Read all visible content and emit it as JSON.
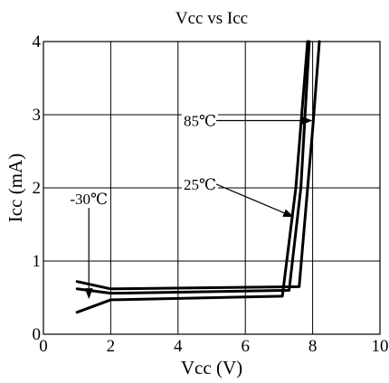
{
  "chart_data": {
    "type": "line",
    "title": "Vcc vs Icc",
    "xlabel": "Vcc (V)",
    "ylabel": "Icc (mA)",
    "xlim": [
      0,
      10
    ],
    "ylim": [
      0,
      4
    ],
    "xticks": [
      0,
      2,
      4,
      6,
      8,
      10
    ],
    "yticks": [
      0,
      1,
      2,
      3,
      4
    ],
    "grid": true,
    "series": [
      {
        "name": "-30℃",
        "x": [
          1.0,
          2.0,
          7.1,
          7.5,
          7.85
        ],
        "y": [
          0.3,
          0.47,
          0.52,
          2.0,
          4.0
        ]
      },
      {
        "name": "25℃",
        "x": [
          1.0,
          2.0,
          7.3,
          7.65,
          7.9
        ],
        "y": [
          0.62,
          0.56,
          0.6,
          2.0,
          4.0
        ]
      },
      {
        "name": "85℃",
        "x": [
          1.0,
          2.0,
          7.6,
          8.0,
          8.2
        ],
        "y": [
          0.72,
          0.62,
          0.65,
          2.8,
          4.0
        ]
      }
    ],
    "annotations": [
      {
        "text": "85℃",
        "x_text": 4.65,
        "y_text": 2.92,
        "x_arrow": 8.0,
        "y_arrow": 2.92
      },
      {
        "text": "25℃",
        "x_text": 4.65,
        "y_text": 2.05,
        "x_arrow": 7.45,
        "y_arrow": 1.6
      },
      {
        "text": "-30℃",
        "x_text": 1.35,
        "y_text": 1.85,
        "x_arrow": 1.35,
        "y_arrow": 0.48
      }
    ]
  }
}
